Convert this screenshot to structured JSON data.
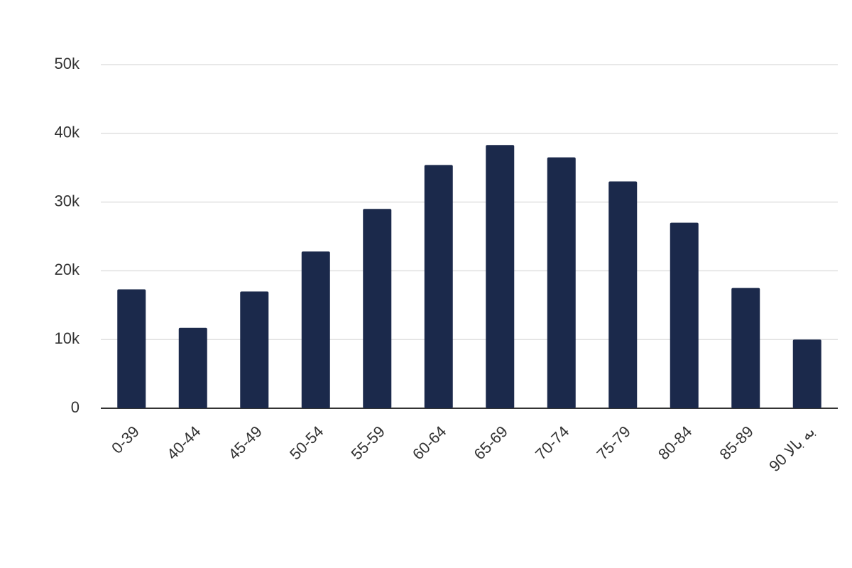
{
  "chart_data": {
    "type": "bar",
    "categories": [
      "0-39",
      "40-44",
      "45-49",
      "50-54",
      "55-59",
      "60-64",
      "65-69",
      "70-74",
      "75-79",
      "80-84",
      "85-89",
      "90 به بالا"
    ],
    "values": [
      17300,
      11700,
      17000,
      22800,
      29000,
      35400,
      38300,
      36500,
      33000,
      27000,
      17500,
      10000
    ],
    "color": "#1b294b",
    "ylim": [
      0,
      50000
    ],
    "yticks": [
      0,
      {
        "value": 10000,
        "label": "10k"
      },
      {
        "value": 20000,
        "label": "20k"
      },
      {
        "value": 30000,
        "label": "30k"
      },
      {
        "value": 40000,
        "label": "40k"
      },
      {
        "value": 50000,
        "label": "50k"
      }
    ],
    "grid": true
  }
}
